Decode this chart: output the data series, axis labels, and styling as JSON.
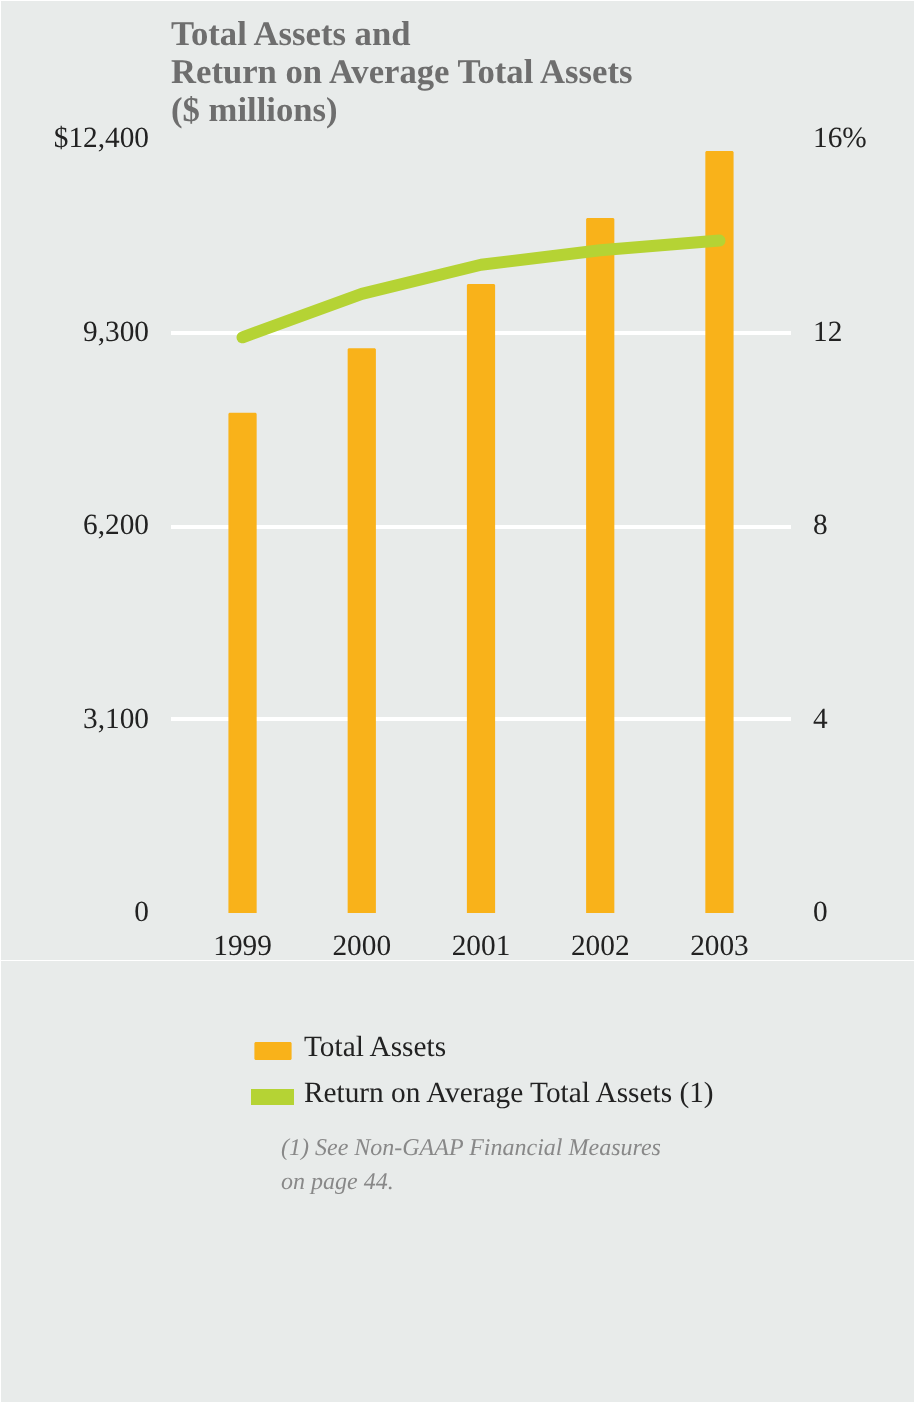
{
  "chart_data": {
    "type": "bar",
    "title": "Total Assets and\nReturn on Average Total Assets\n($ millions)",
    "categories": [
      "1999",
      "2000",
      "2001",
      "2002",
      "2003"
    ],
    "series": [
      {
        "name": "Total Assets",
        "color": "#f9b21a",
        "values": [
          8000,
          9030,
          10060,
          11120,
          12190
        ]
      },
      {
        "name": "Return on Average Total Assets (1)",
        "color": "#b5d334",
        "type": "line",
        "axis": "y2",
        "values": [
          11.9,
          12.8,
          13.4,
          13.7,
          13.9
        ]
      }
    ],
    "ylim": [
      0,
      12400
    ],
    "yticks": [
      {
        "value": 0,
        "label": "0"
      },
      {
        "value": 3100,
        "label": "3,100"
      },
      {
        "value": 6200,
        "label": "6,200"
      },
      {
        "value": 9300,
        "label": "9,300"
      },
      {
        "value": 12400,
        "label": "$12,400"
      }
    ],
    "y2lim": [
      0,
      16
    ],
    "y2ticks": [
      0,
      4,
      8,
      12,
      {
        "value": 16,
        "label": "16%"
      }
    ],
    "grid": "y",
    "legend": "bottom",
    "marker": "none",
    "line_style": "solid",
    "annotations": [
      "(1) See Non-GAAP Financial Measures\n     on page 44."
    ]
  }
}
